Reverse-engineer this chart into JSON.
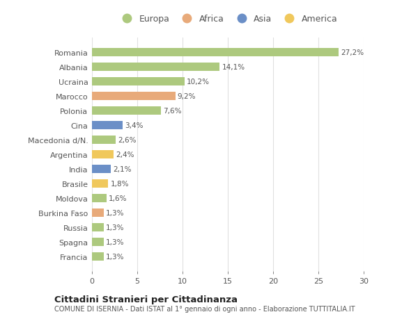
{
  "countries": [
    "Romania",
    "Albania",
    "Ucraina",
    "Marocco",
    "Polonia",
    "Cina",
    "Macedonia d/N.",
    "Argentina",
    "India",
    "Brasile",
    "Moldova",
    "Burkina Faso",
    "Russia",
    "Spagna",
    "Francia"
  ],
  "values": [
    27.2,
    14.1,
    10.2,
    9.2,
    7.6,
    3.4,
    2.6,
    2.4,
    2.1,
    1.8,
    1.6,
    1.3,
    1.3,
    1.3,
    1.3
  ],
  "labels": [
    "27,2%",
    "14,1%",
    "10,2%",
    "9,2%",
    "7,6%",
    "3,4%",
    "2,6%",
    "2,4%",
    "2,1%",
    "1,8%",
    "1,6%",
    "1,3%",
    "1,3%",
    "1,3%",
    "1,3%"
  ],
  "continents": [
    "Europa",
    "Europa",
    "Europa",
    "Africa",
    "Europa",
    "Asia",
    "Europa",
    "America",
    "Asia",
    "America",
    "Europa",
    "Africa",
    "Europa",
    "Europa",
    "Europa"
  ],
  "colors": {
    "Europa": "#adc97e",
    "Africa": "#e8aa7a",
    "Asia": "#6b8fc7",
    "America": "#f0c85c"
  },
  "title": "Cittadini Stranieri per Cittadinanza",
  "subtitle": "COMUNE DI ISERNIA - Dati ISTAT al 1° gennaio di ogni anno - Elaborazione TUTTITALIA.IT",
  "xlim": [
    0,
    30
  ],
  "xticks": [
    0,
    5,
    10,
    15,
    20,
    25,
    30
  ],
  "background_color": "#ffffff",
  "plot_bg_color": "#ffffff",
  "grid_color": "#e0e0e0",
  "legend_order": [
    "Europa",
    "Africa",
    "Asia",
    "America"
  ]
}
